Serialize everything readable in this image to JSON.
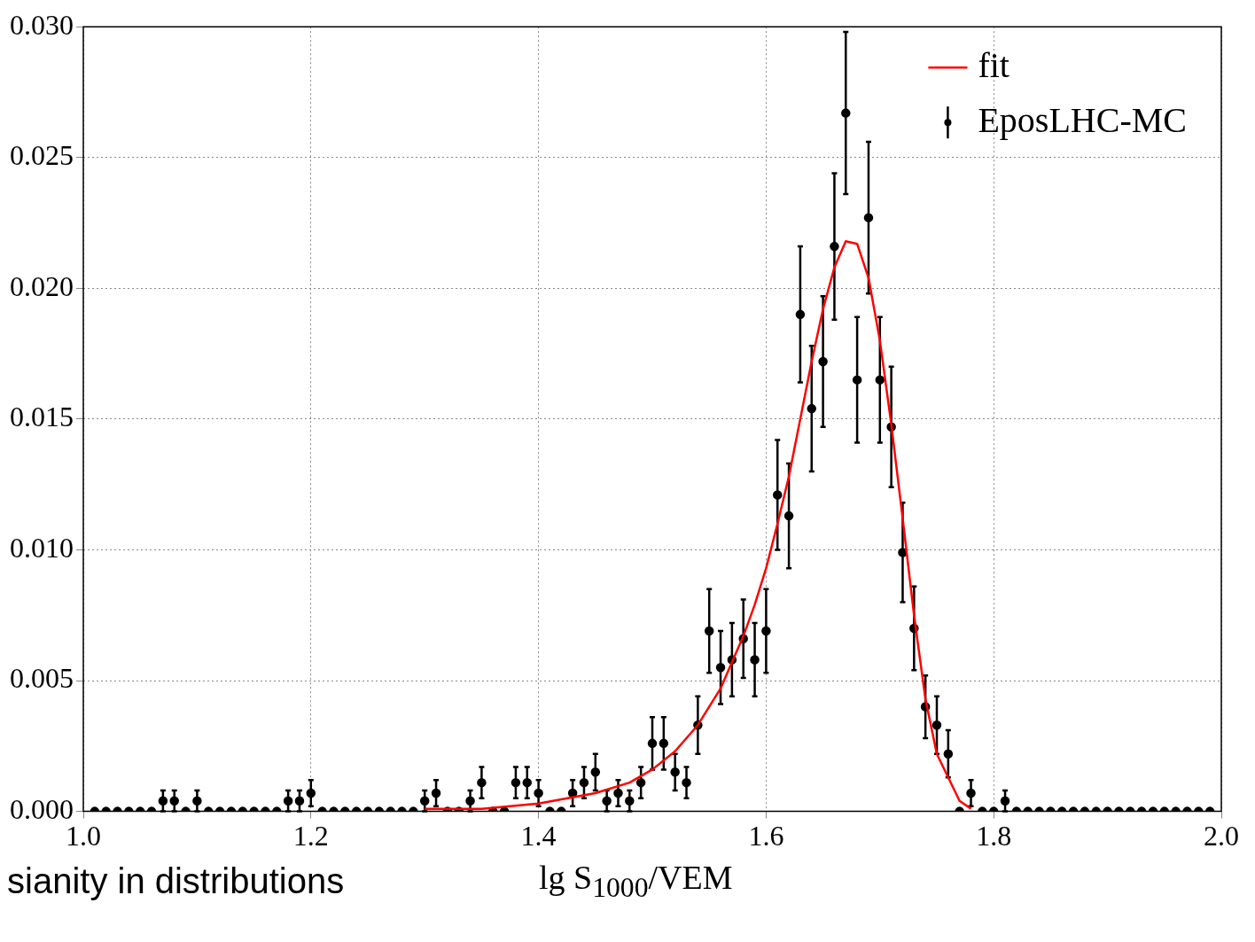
{
  "chart_data": {
    "type": "scatter",
    "xlabel": "lg S$_{1000}$/VEM",
    "xlim": [
      1.0,
      2.0
    ],
    "xticks": [
      {
        "value": 1.0,
        "label": "1.0"
      },
      {
        "value": 1.2,
        "label": "1.2"
      },
      {
        "value": 1.4,
        "label": "1.4"
      },
      {
        "value": 1.6,
        "label": "1.6"
      },
      {
        "value": 1.8,
        "label": "1.8"
      },
      {
        "value": 2.0,
        "label": "2.0"
      }
    ],
    "ylim": [
      0,
      0.03
    ],
    "yticks": [
      {
        "value": 0,
        "label": "0.000"
      },
      {
        "value": 0.005,
        "label": "0.005"
      },
      {
        "value": 0.01,
        "label": "0.010"
      },
      {
        "value": 0.015,
        "label": "0.015"
      },
      {
        "value": 0.02,
        "label": "0.020"
      },
      {
        "value": 0.025,
        "label": "0.025"
      },
      {
        "value": 0.03,
        "label": "0.030"
      }
    ],
    "grid": true,
    "legend": "top right",
    "annotations": [
      "sianity in distributions"
    ],
    "series": [
      {
        "name": "fit",
        "type": "line",
        "color": "#ff0000",
        "marker": "none",
        "line_style": "solid",
        "x": [
          1.3,
          1.35,
          1.4,
          1.45,
          1.48,
          1.5,
          1.52,
          1.54,
          1.56,
          1.58,
          1.59,
          1.6,
          1.61,
          1.62,
          1.63,
          1.64,
          1.65,
          1.66,
          1.67,
          1.68,
          1.69,
          1.7,
          1.71,
          1.72,
          1.73,
          1.74,
          1.75,
          1.76,
          1.77,
          1.78
        ],
        "values": [
          0.0001,
          0.0001,
          0.0003,
          0.0007,
          0.0011,
          0.0016,
          0.0023,
          0.0033,
          0.0047,
          0.0067,
          0.0079,
          0.0093,
          0.011,
          0.0128,
          0.015,
          0.0172,
          0.0192,
          0.0208,
          0.0218,
          0.0217,
          0.0204,
          0.018,
          0.0148,
          0.0112,
          0.0075,
          0.0043,
          0.0022,
          0.0013,
          0.0004,
          0.0001
        ]
      },
      {
        "name": "EposLHC-MC",
        "type": "scatter",
        "color": "#000000",
        "marker": "circle",
        "x": [
          1.01,
          1.02,
          1.03,
          1.04,
          1.05,
          1.06,
          1.07,
          1.08,
          1.09,
          1.1,
          1.11,
          1.12,
          1.13,
          1.14,
          1.15,
          1.16,
          1.17,
          1.18,
          1.19,
          1.2,
          1.21,
          1.22,
          1.23,
          1.24,
          1.25,
          1.26,
          1.27,
          1.28,
          1.29,
          1.3,
          1.31,
          1.32,
          1.33,
          1.34,
          1.35,
          1.36,
          1.37,
          1.38,
          1.39,
          1.4,
          1.41,
          1.42,
          1.43,
          1.44,
          1.45,
          1.46,
          1.47,
          1.48,
          1.49,
          1.5,
          1.51,
          1.52,
          1.53,
          1.54,
          1.55,
          1.56,
          1.57,
          1.58,
          1.59,
          1.6,
          1.61,
          1.62,
          1.63,
          1.64,
          1.65,
          1.66,
          1.67,
          1.68,
          1.69,
          1.7,
          1.71,
          1.72,
          1.73,
          1.74,
          1.75,
          1.76,
          1.77,
          1.78,
          1.79,
          1.8,
          1.81,
          1.82,
          1.83,
          1.84,
          1.85,
          1.86,
          1.87,
          1.88,
          1.89,
          1.9,
          1.91,
          1.92,
          1.93,
          1.94,
          1.95,
          1.96,
          1.97,
          1.98,
          1.99
        ],
        "values": [
          0,
          0,
          0,
          0,
          0,
          0,
          0.0004,
          0.0004,
          0,
          0.0004,
          0,
          0,
          0,
          0,
          0,
          0,
          0,
          0.0004,
          0.0004,
          0.0007,
          0,
          0,
          0,
          0,
          0,
          0,
          0,
          0,
          0,
          0.0004,
          0.0007,
          0,
          0,
          0.0004,
          0.0011,
          0,
          0,
          0.0011,
          0.0011,
          0.0007,
          0,
          0,
          0.0007,
          0.0011,
          0.0015,
          0.0004,
          0.0007,
          0.0004,
          0.0011,
          0.0026,
          0.0026,
          0.0015,
          0.0011,
          0.0033,
          0.0069,
          0.0055,
          0.0058,
          0.0066,
          0.0058,
          0.0069,
          0.0121,
          0.0113,
          0.019,
          0.0154,
          0.0172,
          0.0216,
          0.0267,
          0.0165,
          0.0227,
          0.0165,
          0.0147,
          0.0099,
          0.007,
          0.004,
          0.0033,
          0.0022,
          0,
          0.0007,
          0,
          0,
          0.0004,
          0,
          0,
          0,
          0,
          0,
          0,
          0,
          0,
          0,
          0,
          0,
          0,
          0,
          0,
          0,
          0,
          0,
          0
        ],
        "errors": [
          null,
          null,
          null,
          null,
          null,
          null,
          0.0004,
          0.0004,
          null,
          0.0004,
          null,
          null,
          null,
          null,
          null,
          null,
          null,
          0.0004,
          0.0004,
          0.0005,
          null,
          null,
          null,
          null,
          null,
          null,
          null,
          null,
          null,
          0.0004,
          0.0005,
          null,
          null,
          0.0004,
          0.0006,
          null,
          null,
          0.0006,
          0.0006,
          0.0005,
          null,
          null,
          0.0005,
          0.0006,
          0.0007,
          0.0004,
          0.0005,
          0.0004,
          0.0006,
          0.001,
          0.001,
          0.0007,
          0.0006,
          0.0011,
          0.0016,
          0.0014,
          0.0014,
          0.0015,
          0.0014,
          0.0016,
          0.0021,
          0.002,
          0.0026,
          0.0024,
          0.0025,
          0.0028,
          0.0031,
          0.0024,
          0.0029,
          0.0024,
          0.0023,
          0.0019,
          0.0016,
          0.0012,
          0.0011,
          0.0009,
          null,
          0.0005,
          null,
          null,
          0.0004,
          null,
          null,
          null,
          null,
          null,
          null,
          null,
          null,
          null,
          null,
          null,
          null,
          null,
          null,
          null,
          null,
          null,
          null
        ]
      }
    ]
  }
}
